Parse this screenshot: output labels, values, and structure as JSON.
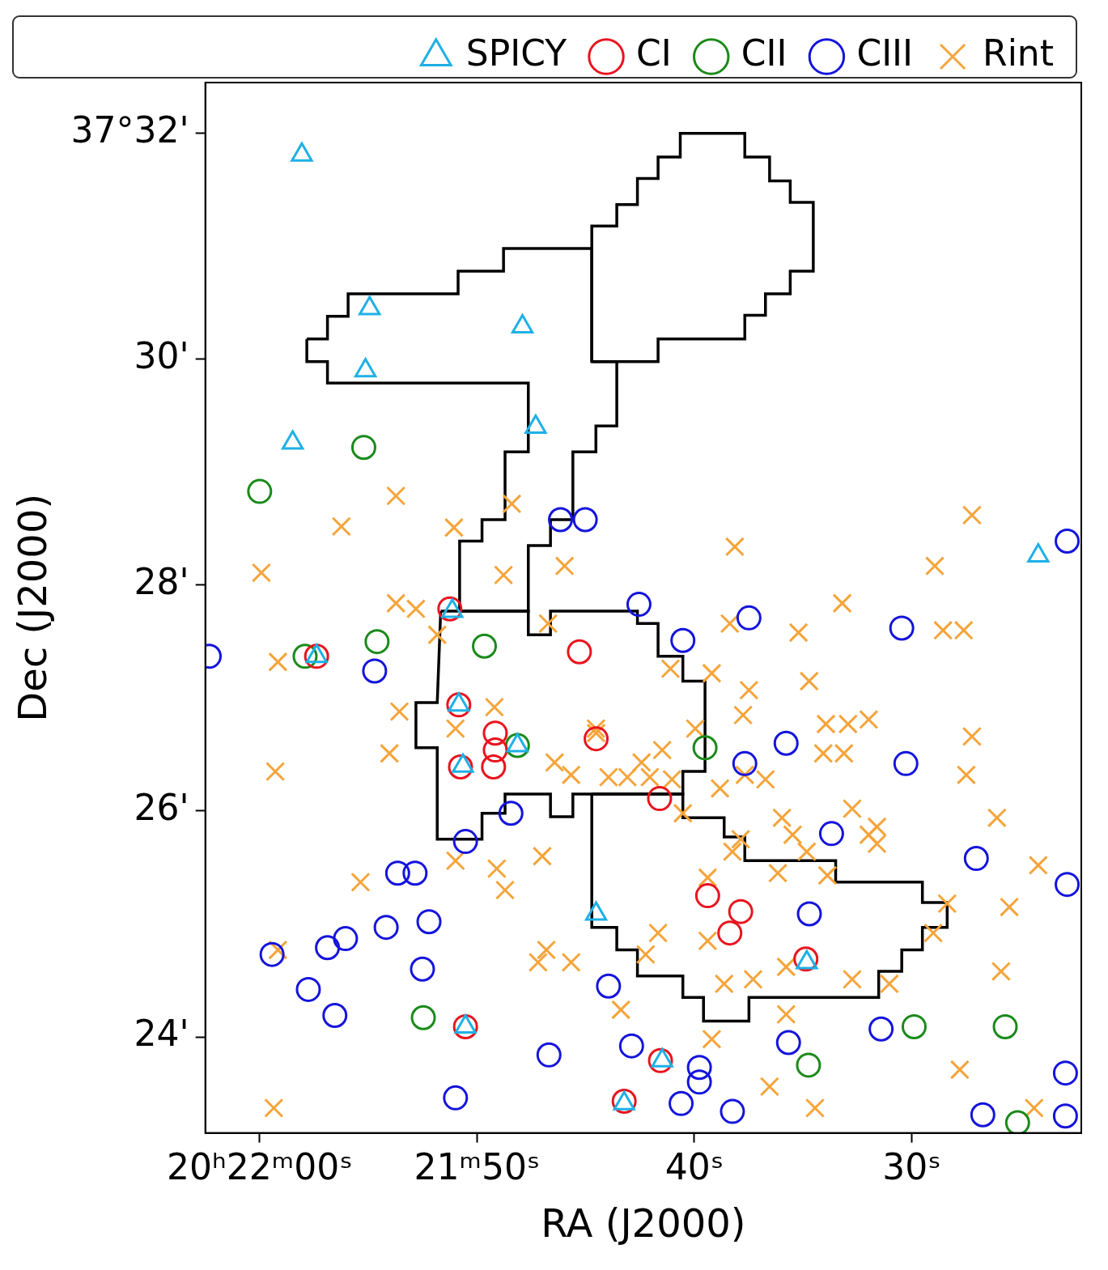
{
  "chart_data": {
    "type": "scatter",
    "x_label": "RA (J2000)",
    "y_label": "Dec (J2000)",
    "xlim": [
      62.5,
      22.2
    ],
    "ylim": [
      23.15,
      32.45
    ],
    "xticks": [
      {
        "value": 60,
        "label": "20ʰ22ᵐ00ˢ"
      },
      {
        "value": 50,
        "label": "21ᵐ50ˢ"
      },
      {
        "value": 40,
        "label": "40ˢ"
      },
      {
        "value": 30,
        "label": "30ˢ"
      }
    ],
    "yticks": [
      {
        "value": 24,
        "label": "24'"
      },
      {
        "value": 26,
        "label": "26'"
      },
      {
        "value": 28,
        "label": "28'"
      },
      {
        "value": 30,
        "label": "30'"
      },
      {
        "value": 32,
        "label": "37°32'"
      }
    ],
    "grid": false,
    "legend": "top",
    "series": [
      {
        "name": "SPICY",
        "color": "#1fb0e6",
        "marker": "triangle",
        "values": [
          [
            58.06,
            31.81
          ],
          [
            54.94,
            30.45
          ],
          [
            55.13,
            29.9
          ],
          [
            47.91,
            30.29
          ],
          [
            58.48,
            29.26
          ],
          [
            47.3,
            29.4
          ],
          [
            24.18,
            28.26
          ],
          [
            51.14,
            27.77
          ],
          [
            50.84,
            26.94
          ],
          [
            50.65,
            26.4
          ],
          [
            44.52,
            25.09
          ],
          [
            41.48,
            23.79
          ],
          [
            43.23,
            23.41
          ],
          [
            34.83,
            24.66
          ],
          [
            50.53,
            24.09
          ],
          [
            57.38,
            27.37
          ],
          [
            48.14,
            26.58
          ]
        ]
      },
      {
        "name": "CI",
        "color": "#e8141e",
        "marker": "circle",
        "values": [
          [
            57.38,
            27.37
          ],
          [
            51.25,
            27.79
          ],
          [
            50.84,
            26.94
          ],
          [
            49.16,
            26.69
          ],
          [
            49.16,
            26.54
          ],
          [
            49.24,
            26.39
          ],
          [
            50.76,
            26.39
          ],
          [
            45.29,
            27.41
          ],
          [
            44.52,
            26.64
          ],
          [
            41.6,
            26.11
          ],
          [
            39.39,
            25.25
          ],
          [
            37.87,
            25.11
          ],
          [
            38.37,
            24.92
          ],
          [
            34.87,
            24.69
          ],
          [
            50.53,
            24.09
          ],
          [
            41.56,
            23.79
          ],
          [
            43.23,
            23.43
          ]
        ]
      },
      {
        "name": "CII",
        "color": "#1a8a1a",
        "marker": "circle",
        "values": [
          [
            55.21,
            29.22
          ],
          [
            60.0,
            28.83
          ],
          [
            57.91,
            27.37
          ],
          [
            54.6,
            27.5
          ],
          [
            49.66,
            27.46
          ],
          [
            48.14,
            26.58
          ],
          [
            39.51,
            26.56
          ],
          [
            52.47,
            24.17
          ],
          [
            34.75,
            23.75
          ],
          [
            29.89,
            24.09
          ],
          [
            25.7,
            24.09
          ],
          [
            25.13,
            23.24
          ]
        ]
      },
      {
        "name": "CIII",
        "color": "#1414dc",
        "marker": "circle",
        "values": [
          [
            62.32,
            27.37
          ],
          [
            46.16,
            28.58
          ],
          [
            45.02,
            28.58
          ],
          [
            42.55,
            27.83
          ],
          [
            37.49,
            27.71
          ],
          [
            40.53,
            27.51
          ],
          [
            30.46,
            27.62
          ],
          [
            54.71,
            27.24
          ],
          [
            35.78,
            26.6
          ],
          [
            37.68,
            26.42
          ],
          [
            30.27,
            26.42
          ],
          [
            22.85,
            28.39
          ],
          [
            50.53,
            25.73
          ],
          [
            48.44,
            25.98
          ],
          [
            33.69,
            25.8
          ],
          [
            53.65,
            25.45
          ],
          [
            52.85,
            25.45
          ],
          [
            54.18,
            24.97
          ],
          [
            52.21,
            25.02
          ],
          [
            59.43,
            24.73
          ],
          [
            56.88,
            24.79
          ],
          [
            56.05,
            24.87
          ],
          [
            57.76,
            24.42
          ],
          [
            56.54,
            24.19
          ],
          [
            52.51,
            24.6
          ],
          [
            34.71,
            25.09
          ],
          [
            27.03,
            25.58
          ],
          [
            22.85,
            25.35
          ],
          [
            43.95,
            24.45
          ],
          [
            46.69,
            23.84
          ],
          [
            50.99,
            23.46
          ],
          [
            42.89,
            23.92
          ],
          [
            39.77,
            23.73
          ],
          [
            39.77,
            23.6
          ],
          [
            40.61,
            23.41
          ],
          [
            38.25,
            23.34
          ],
          [
            35.67,
            23.95
          ],
          [
            31.41,
            24.07
          ],
          [
            26.73,
            23.31
          ],
          [
            22.93,
            23.68
          ],
          [
            22.93,
            23.3
          ]
        ]
      },
      {
        "name": "Rint",
        "color": "#f5a43a",
        "marker": "x",
        "values": [
          [
            53.73,
            28.79
          ],
          [
            56.24,
            28.52
          ],
          [
            59.92,
            28.11
          ],
          [
            51.06,
            28.51
          ],
          [
            48.4,
            28.72
          ],
          [
            45.97,
            28.17
          ],
          [
            48.78,
            28.09
          ],
          [
            38.14,
            28.34
          ],
          [
            27.23,
            28.62
          ],
          [
            28.94,
            28.17
          ],
          [
            33.2,
            27.84
          ],
          [
            28.56,
            27.6
          ],
          [
            27.61,
            27.6
          ],
          [
            35.21,
            27.58
          ],
          [
            38.37,
            27.66
          ],
          [
            53.73,
            27.84
          ],
          [
            52.81,
            27.79
          ],
          [
            51.83,
            27.56
          ],
          [
            59.16,
            27.32
          ],
          [
            53.57,
            26.88
          ],
          [
            54.03,
            26.51
          ],
          [
            59.28,
            26.35
          ],
          [
            50.99,
            26.73
          ],
          [
            49.2,
            26.92
          ],
          [
            46.73,
            27.66
          ],
          [
            41.1,
            27.26
          ],
          [
            39.2,
            27.22
          ],
          [
            37.49,
            27.07
          ],
          [
            34.72,
            27.15
          ],
          [
            37.76,
            26.85
          ],
          [
            39.96,
            26.73
          ],
          [
            44.53,
            26.73
          ],
          [
            41.48,
            26.54
          ],
          [
            42.43,
            26.43
          ],
          [
            43.08,
            26.3
          ],
          [
            42.05,
            26.3
          ],
          [
            46.43,
            26.43
          ],
          [
            45.67,
            26.32
          ],
          [
            43.95,
            26.3
          ],
          [
            41.03,
            26.28
          ],
          [
            37.68,
            26.32
          ],
          [
            33.95,
            26.77
          ],
          [
            32.93,
            26.77
          ],
          [
            31.98,
            26.81
          ],
          [
            34.07,
            26.51
          ],
          [
            33.12,
            26.51
          ],
          [
            27.23,
            26.66
          ],
          [
            27.49,
            26.32
          ],
          [
            36.73,
            26.28
          ],
          [
            38.82,
            26.2
          ],
          [
            35.97,
            25.94
          ],
          [
            35.48,
            25.79
          ],
          [
            32.74,
            26.02
          ],
          [
            31.98,
            25.79
          ],
          [
            31.6,
            25.71
          ],
          [
            31.6,
            25.86
          ],
          [
            26.08,
            25.94
          ],
          [
            24.18,
            25.52
          ],
          [
            25.51,
            25.15
          ],
          [
            28.37,
            25.18
          ],
          [
            33.88,
            25.43
          ],
          [
            34.83,
            25.64
          ],
          [
            36.16,
            25.45
          ],
          [
            38.25,
            25.64
          ],
          [
            39.39,
            25.41
          ],
          [
            37.87,
            25.75
          ],
          [
            40.53,
            25.98
          ],
          [
            50.99,
            25.56
          ],
          [
            49.09,
            25.49
          ],
          [
            48.71,
            25.3
          ],
          [
            47.0,
            25.6
          ],
          [
            55.36,
            25.37
          ],
          [
            45.67,
            24.66
          ],
          [
            47.19,
            24.66
          ],
          [
            42.24,
            24.73
          ],
          [
            41.67,
            24.92
          ],
          [
            39.39,
            24.85
          ],
          [
            38.63,
            24.47
          ],
          [
            37.3,
            24.51
          ],
          [
            35.78,
            24.62
          ],
          [
            32.74,
            24.51
          ],
          [
            31.03,
            24.47
          ],
          [
            29.01,
            24.92
          ],
          [
            25.89,
            24.58
          ],
          [
            43.38,
            24.24
          ],
          [
            39.2,
            23.98
          ],
          [
            36.54,
            23.56
          ],
          [
            34.45,
            23.37
          ],
          [
            27.79,
            23.71
          ],
          [
            24.37,
            23.37
          ],
          [
            59.35,
            23.37
          ],
          [
            59.16,
            24.77
          ],
          [
            44.52,
            26.69
          ],
          [
            46.81,
            24.77
          ],
          [
            35.78,
            24.2
          ]
        ]
      }
    ],
    "contours": [
      [
        [
          44.72,
          29.98
        ],
        [
          44.72,
          31.18
        ],
        [
          43.57,
          31.18
        ],
        [
          43.57,
          31.37
        ],
        [
          42.62,
          31.37
        ],
        [
          42.62,
          31.6
        ],
        [
          41.67,
          31.6
        ],
        [
          41.67,
          31.79
        ],
        [
          40.65,
          31.79
        ],
        [
          40.65,
          32.0
        ],
        [
          37.68,
          32.0
        ],
        [
          37.68,
          31.79
        ],
        [
          36.54,
          31.79
        ],
        [
          36.54,
          31.58
        ],
        [
          35.59,
          31.58
        ],
        [
          35.59,
          31.39
        ],
        [
          34.53,
          31.39
        ],
        [
          34.53,
          30.78
        ],
        [
          35.59,
          30.78
        ],
        [
          35.59,
          30.58
        ],
        [
          36.73,
          30.58
        ],
        [
          36.73,
          30.39
        ],
        [
          37.68,
          30.39
        ],
        [
          37.68,
          30.18
        ],
        [
          41.67,
          30.18
        ],
        [
          41.67,
          29.98
        ],
        [
          44.72,
          29.98
        ]
      ],
      [
        [
          57.83,
          30.18
        ],
        [
          56.88,
          30.18
        ],
        [
          56.88,
          30.38
        ],
        [
          55.93,
          30.38
        ],
        [
          55.93,
          30.58
        ],
        [
          50.87,
          30.58
        ],
        [
          50.87,
          30.78
        ],
        [
          48.78,
          30.78
        ],
        [
          48.78,
          30.98
        ],
        [
          44.72,
          30.98
        ],
        [
          44.72,
          29.98
        ],
        [
          43.57,
          29.98
        ],
        [
          43.57,
          29.41
        ],
        [
          44.53,
          29.41
        ],
        [
          44.53,
          29.18
        ],
        [
          45.59,
          29.18
        ],
        [
          45.59,
          28.58
        ],
        [
          46.62,
          28.58
        ],
        [
          46.62,
          28.35
        ],
        [
          47.64,
          28.35
        ],
        [
          47.64,
          27.77
        ],
        [
          50.8,
          27.77
        ],
        [
          50.8,
          28.39
        ],
        [
          49.77,
          28.39
        ],
        [
          49.77,
          28.58
        ],
        [
          48.71,
          28.58
        ],
        [
          48.71,
          29.18
        ],
        [
          47.64,
          29.18
        ],
        [
          47.64,
          29.79
        ],
        [
          56.88,
          29.79
        ],
        [
          56.88,
          29.98
        ],
        [
          57.83,
          29.98
        ],
        [
          57.83,
          30.18
        ]
      ],
      [
        [
          51.67,
          27.77
        ],
        [
          47.64,
          27.77
        ],
        [
          47.64,
          27.56
        ],
        [
          46.62,
          27.56
        ],
        [
          46.62,
          27.77
        ],
        [
          42.62,
          27.77
        ],
        [
          42.62,
          27.66
        ],
        [
          41.67,
          27.66
        ],
        [
          41.67,
          27.37
        ],
        [
          40.53,
          27.37
        ],
        [
          40.53,
          27.15
        ],
        [
          39.51,
          27.15
        ],
        [
          39.51,
          26.35
        ],
        [
          40.53,
          26.35
        ],
        [
          40.53,
          26.15
        ],
        [
          45.59,
          26.15
        ],
        [
          45.59,
          25.95
        ],
        [
          46.62,
          25.95
        ],
        [
          46.62,
          26.15
        ],
        [
          48.71,
          26.15
        ],
        [
          48.71,
          25.98
        ],
        [
          49.77,
          25.98
        ],
        [
          49.77,
          25.75
        ],
        [
          51.83,
          25.75
        ],
        [
          51.83,
          26.56
        ],
        [
          52.81,
          26.56
        ],
        [
          52.81,
          26.96
        ],
        [
          51.83,
          26.96
        ],
        [
          51.67,
          27.77
        ]
      ],
      [
        [
          44.72,
          26.15
        ],
        [
          40.53,
          26.15
        ],
        [
          40.53,
          25.94
        ],
        [
          38.63,
          25.94
        ],
        [
          38.63,
          25.77
        ],
        [
          37.68,
          25.77
        ],
        [
          37.68,
          25.56
        ],
        [
          33.5,
          25.56
        ],
        [
          33.5,
          25.37
        ],
        [
          29.51,
          25.37
        ],
        [
          29.51,
          25.19
        ],
        [
          28.37,
          25.19
        ],
        [
          28.37,
          24.97
        ],
        [
          29.51,
          24.97
        ],
        [
          29.51,
          24.77
        ],
        [
          30.46,
          24.77
        ],
        [
          30.46,
          24.58
        ],
        [
          31.52,
          24.58
        ],
        [
          31.52,
          24.35
        ],
        [
          37.49,
          24.35
        ],
        [
          37.49,
          24.14
        ],
        [
          39.58,
          24.14
        ],
        [
          39.58,
          24.35
        ],
        [
          40.53,
          24.35
        ],
        [
          40.53,
          24.54
        ],
        [
          42.62,
          24.54
        ],
        [
          42.62,
          24.77
        ],
        [
          43.57,
          24.77
        ],
        [
          43.57,
          24.97
        ],
        [
          44.72,
          24.97
        ],
        [
          44.72,
          26.15
        ]
      ]
    ]
  }
}
